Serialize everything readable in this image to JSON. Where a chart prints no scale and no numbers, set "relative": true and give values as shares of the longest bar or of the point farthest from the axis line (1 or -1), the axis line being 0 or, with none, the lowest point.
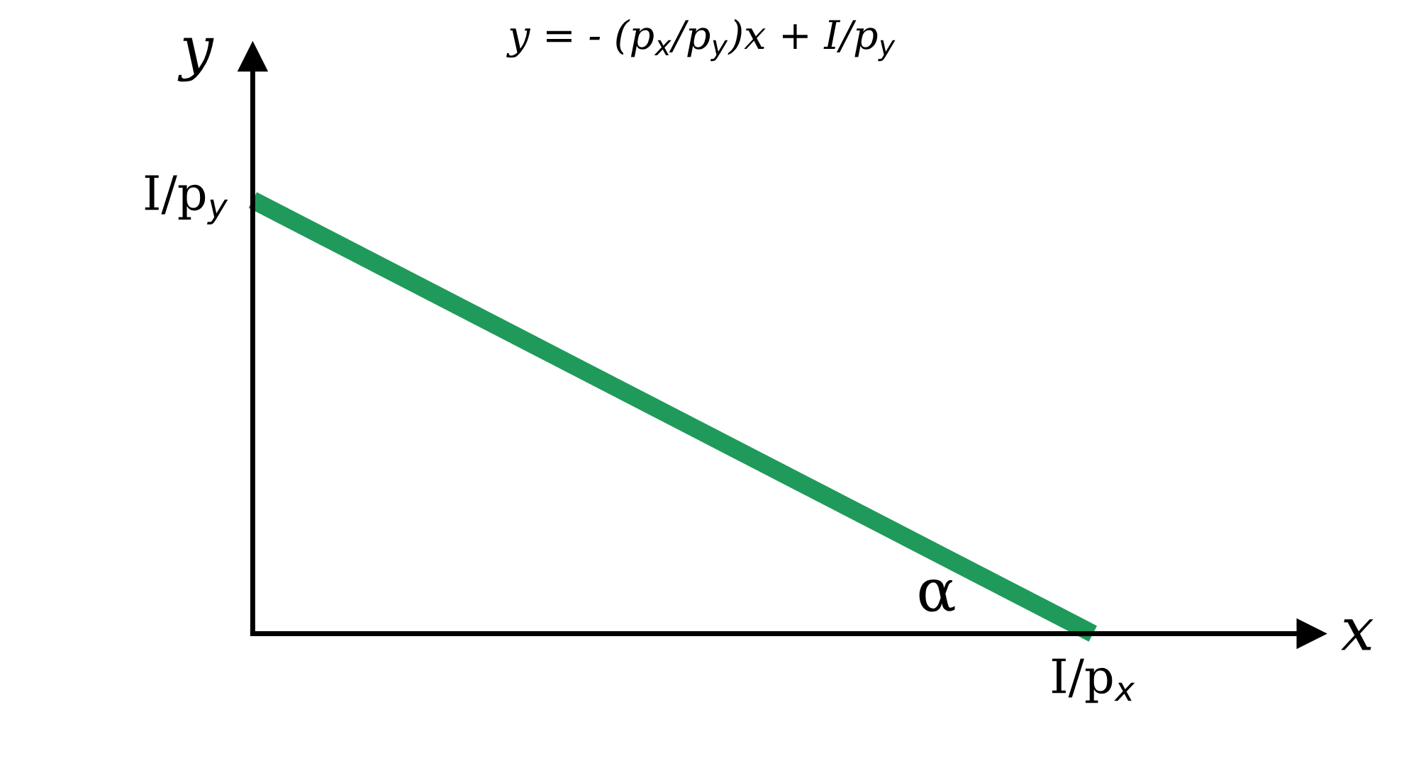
{
  "chart_data": {
    "type": "line",
    "title": "y = - (p$_{x}$/p$_{y}$)x + I/p$_{y}$",
    "xlabel": "x",
    "ylabel": "y",
    "categories": [
      null,
      null
    ],
    "relative": true,
    "series": [
      {
        "color": "#1f9a5a",
        "values": [
          1,
          0
        ]
      }
    ],
    "annotations": [
      "I/p$_{y}$",
      "I/p$_{x}$",
      "α"
    ],
    "grid": false,
    "legend": false,
    "marker": "none",
    "line_style": "solid"
  }
}
